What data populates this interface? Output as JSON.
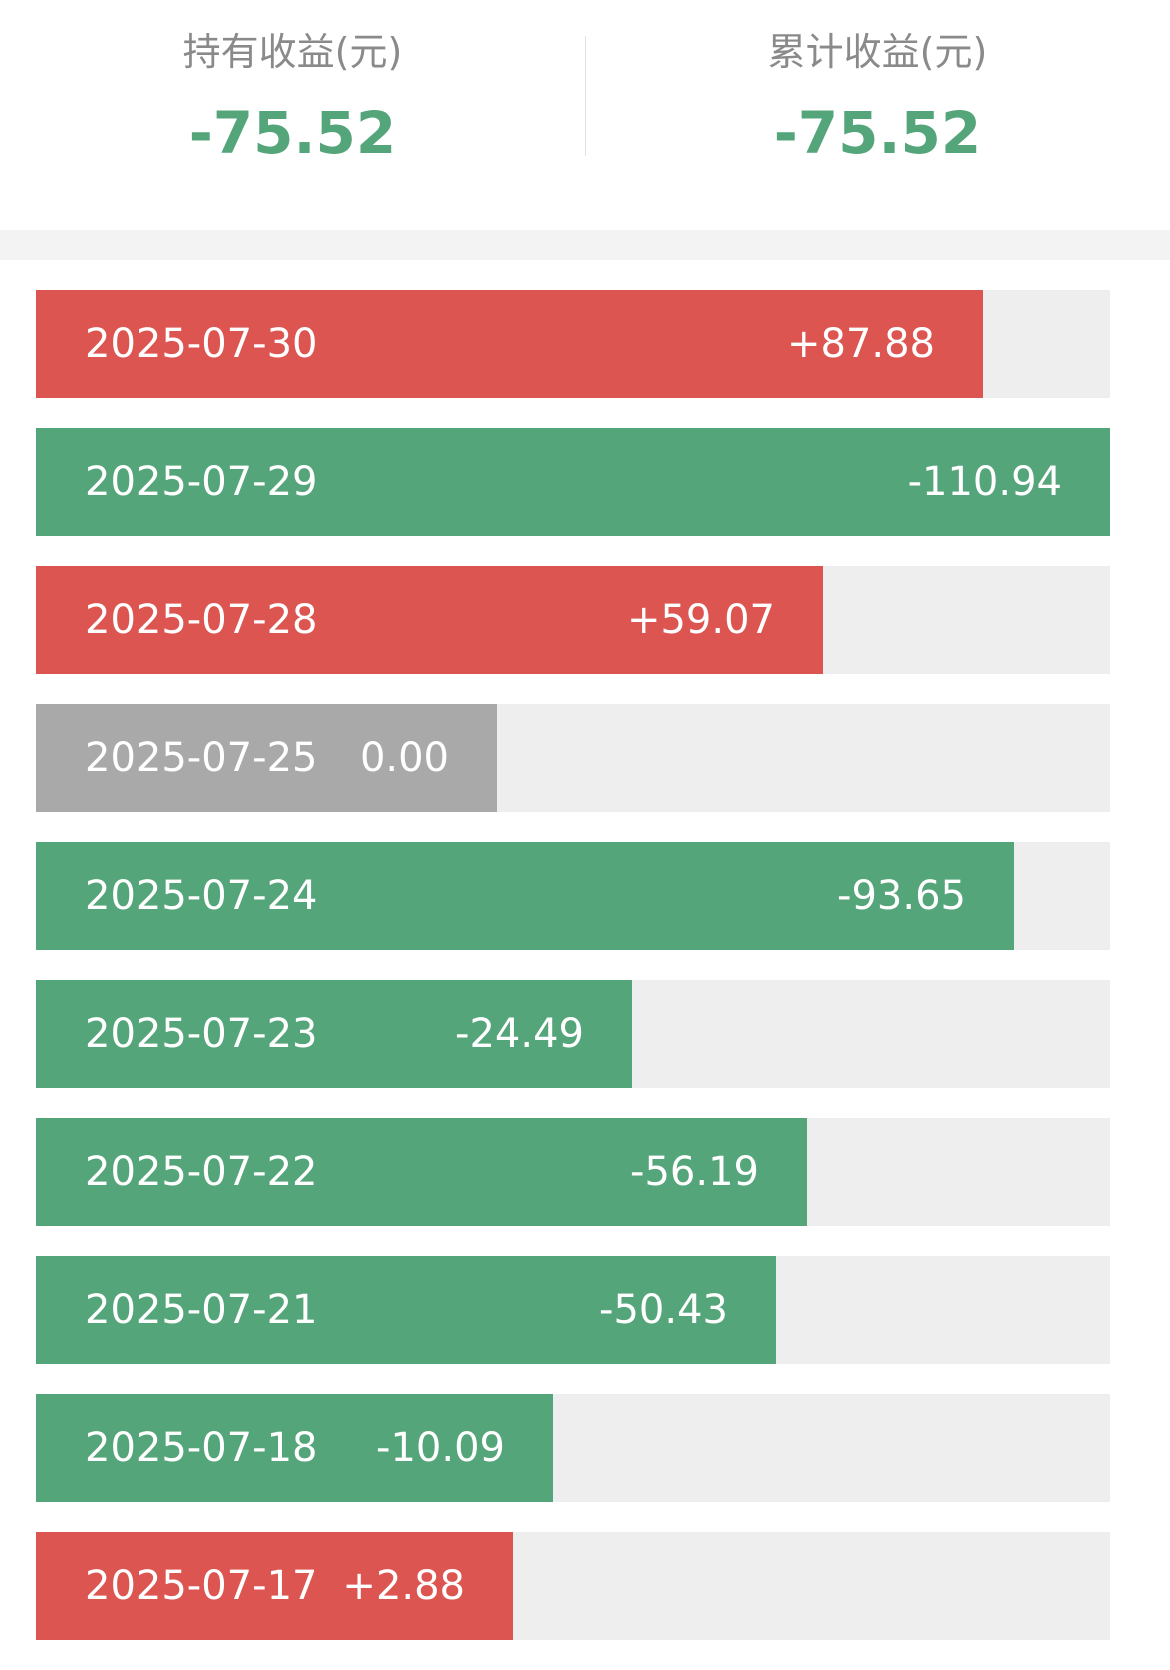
{
  "summary": {
    "holding_label": "持有收益(元)",
    "holding_value": "-75.52",
    "cumulative_label": "累计收益(元)",
    "cumulative_value": "-75.52"
  },
  "colors": {
    "positive": "#dd5550",
    "negative": "#55a57a",
    "zero": "#a9a9a9",
    "track": "#eeeeee"
  },
  "rows": [
    {
      "date": "2025-07-30",
      "value": "+87.88",
      "amount": 87.88
    },
    {
      "date": "2025-07-29",
      "value": "-110.94",
      "amount": -110.94
    },
    {
      "date": "2025-07-28",
      "value": "+59.07",
      "amount": 59.07
    },
    {
      "date": "2025-07-25",
      "value": "0.00",
      "amount": 0
    },
    {
      "date": "2025-07-24",
      "value": "-93.65",
      "amount": -93.65
    },
    {
      "date": "2025-07-23",
      "value": "-24.49",
      "amount": -24.49
    },
    {
      "date": "2025-07-22",
      "value": "-56.19",
      "amount": -56.19
    },
    {
      "date": "2025-07-21",
      "value": "-50.43",
      "amount": -50.43
    },
    {
      "date": "2025-07-18",
      "value": "-10.09",
      "amount": -10.09
    },
    {
      "date": "2025-07-17",
      "value": "+2.88",
      "amount": 2.88
    }
  ]
}
